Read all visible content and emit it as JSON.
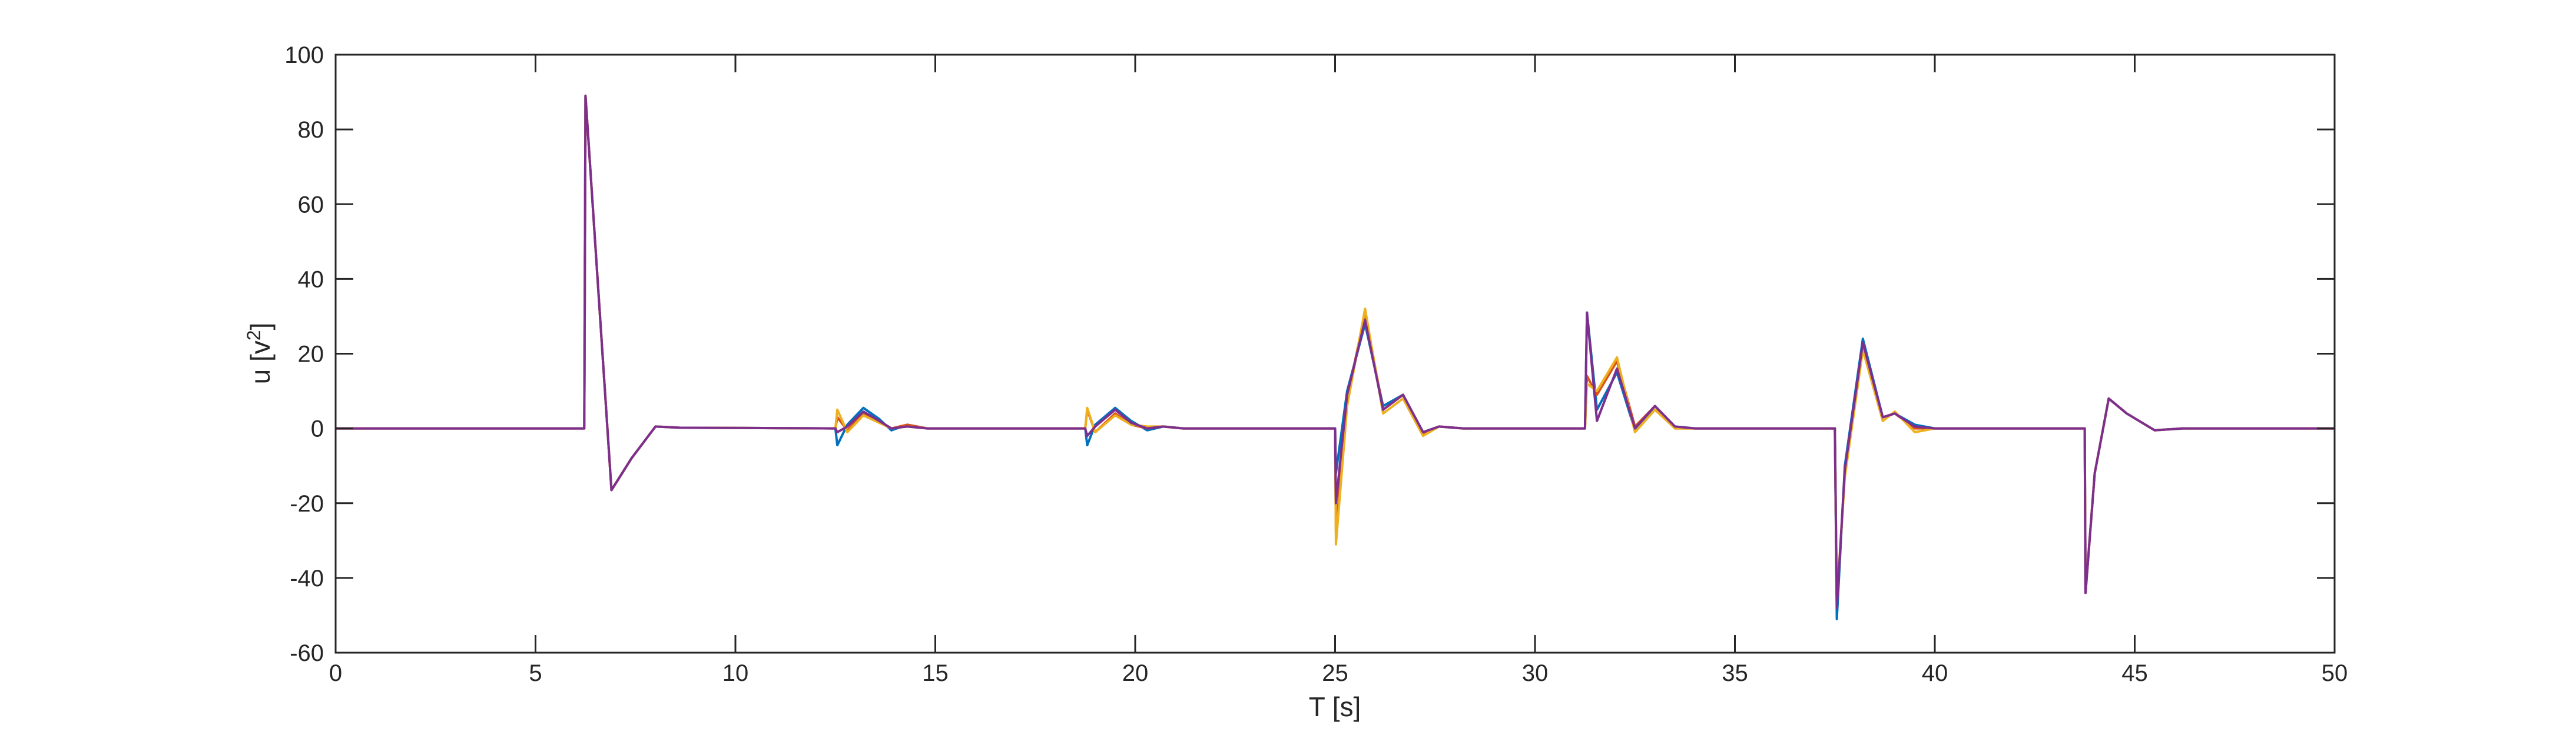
{
  "chart_data": {
    "type": "line",
    "title": "",
    "xlabel": "T [s]",
    "ylabel_base": "u [v",
    "ylabel_sup": "2",
    "ylabel_end": "]",
    "xlim": [
      0,
      50
    ],
    "ylim": [
      -60,
      100
    ],
    "x_ticks": [
      0,
      5,
      10,
      15,
      20,
      25,
      30,
      35,
      40,
      45,
      50
    ],
    "y_ticks": [
      -60,
      -40,
      -20,
      0,
      20,
      40,
      60,
      80,
      100
    ],
    "grid": false,
    "legend": "none",
    "series": [
      {
        "color": "#0072BD",
        "points": [
          [
            0,
            0
          ],
          [
            6.22,
            0
          ],
          [
            6.25,
            89
          ],
          [
            6.9,
            -16.5
          ],
          [
            7.4,
            -8
          ],
          [
            8.0,
            0.5
          ],
          [
            8.6,
            0.2
          ],
          [
            12.5,
            0
          ],
          [
            12.55,
            -4.5
          ],
          [
            12.8,
            1
          ],
          [
            13.2,
            5.5
          ],
          [
            13.6,
            2.5
          ],
          [
            13.9,
            -0.5
          ],
          [
            14.3,
            1
          ],
          [
            14.8,
            0
          ],
          [
            18.75,
            0
          ],
          [
            18.8,
            -4.5
          ],
          [
            19.0,
            1
          ],
          [
            19.5,
            5.5
          ],
          [
            19.9,
            2
          ],
          [
            20.3,
            -0.5
          ],
          [
            20.7,
            0.5
          ],
          [
            21.2,
            0
          ],
          [
            25.0,
            0
          ],
          [
            25.02,
            -12
          ],
          [
            25.3,
            10
          ],
          [
            25.75,
            28
          ],
          [
            26.2,
            6
          ],
          [
            26.7,
            9
          ],
          [
            27.2,
            -1
          ],
          [
            27.6,
            0.5
          ],
          [
            28.2,
            0
          ],
          [
            31.25,
            0
          ],
          [
            31.3,
            31
          ],
          [
            31.55,
            5
          ],
          [
            32.05,
            15
          ],
          [
            32.5,
            -0.5
          ],
          [
            33.0,
            6
          ],
          [
            33.5,
            0.5
          ],
          [
            34.0,
            0
          ],
          [
            37.5,
            0
          ],
          [
            37.55,
            -51
          ],
          [
            37.75,
            -10
          ],
          [
            38.2,
            24
          ],
          [
            38.7,
            3
          ],
          [
            39.0,
            4
          ],
          [
            39.5,
            1
          ],
          [
            40.0,
            0
          ],
          [
            43.75,
            0
          ],
          [
            43.77,
            -44
          ],
          [
            44.0,
            -12
          ],
          [
            44.35,
            8
          ],
          [
            44.8,
            4
          ],
          [
            45.5,
            -0.5
          ],
          [
            46.2,
            0
          ],
          [
            50,
            0
          ]
        ]
      },
      {
        "color": "#D95319",
        "points": [
          [
            0,
            0
          ],
          [
            6.22,
            0
          ],
          [
            6.25,
            89
          ],
          [
            6.9,
            -16.5
          ],
          [
            7.4,
            -8
          ],
          [
            8.0,
            0.5
          ],
          [
            8.6,
            0.2
          ],
          [
            12.5,
            0
          ],
          [
            12.55,
            3
          ],
          [
            12.8,
            -0.5
          ],
          [
            13.2,
            4
          ],
          [
            13.6,
            2
          ],
          [
            13.9,
            0
          ],
          [
            14.3,
            1
          ],
          [
            14.8,
            0
          ],
          [
            18.75,
            0
          ],
          [
            18.8,
            5
          ],
          [
            19.0,
            -1
          ],
          [
            19.5,
            4
          ],
          [
            19.9,
            1
          ],
          [
            20.3,
            0
          ],
          [
            20.7,
            0.5
          ],
          [
            21.2,
            0
          ],
          [
            25.0,
            0
          ],
          [
            25.02,
            -28
          ],
          [
            25.3,
            8
          ],
          [
            25.75,
            31
          ],
          [
            26.2,
            5
          ],
          [
            26.7,
            9
          ],
          [
            27.2,
            -1.5
          ],
          [
            27.6,
            0.5
          ],
          [
            28.2,
            0
          ],
          [
            31.25,
            0
          ],
          [
            31.3,
            14
          ],
          [
            31.55,
            9
          ],
          [
            32.05,
            18
          ],
          [
            32.5,
            0.5
          ],
          [
            33.0,
            6
          ],
          [
            33.5,
            0
          ],
          [
            34.0,
            0
          ],
          [
            37.5,
            0
          ],
          [
            37.55,
            -47
          ],
          [
            37.75,
            -12
          ],
          [
            38.2,
            22
          ],
          [
            38.7,
            3
          ],
          [
            39.0,
            4
          ],
          [
            39.5,
            0
          ],
          [
            40.0,
            0
          ],
          [
            43.75,
            0
          ],
          [
            43.77,
            -44
          ],
          [
            44.0,
            -12
          ],
          [
            44.35,
            8
          ],
          [
            44.8,
            4
          ],
          [
            45.5,
            -0.5
          ],
          [
            46.2,
            0
          ],
          [
            50,
            0
          ]
        ]
      },
      {
        "color": "#EDB120",
        "points": [
          [
            0,
            0
          ],
          [
            6.22,
            0
          ],
          [
            6.25,
            89
          ],
          [
            6.9,
            -16.5
          ],
          [
            7.4,
            -8
          ],
          [
            8.0,
            0.5
          ],
          [
            8.6,
            0.2
          ],
          [
            12.5,
            0
          ],
          [
            12.55,
            5
          ],
          [
            12.8,
            -1
          ],
          [
            13.2,
            3.5
          ],
          [
            13.6,
            1.5
          ],
          [
            13.9,
            0
          ],
          [
            14.3,
            0.5
          ],
          [
            14.8,
            0
          ],
          [
            18.75,
            0
          ],
          [
            18.8,
            5.5
          ],
          [
            19.0,
            -1
          ],
          [
            19.5,
            3.5
          ],
          [
            19.9,
            1
          ],
          [
            20.3,
            0.5
          ],
          [
            20.7,
            0.5
          ],
          [
            21.2,
            0
          ],
          [
            25.0,
            0
          ],
          [
            25.02,
            -31
          ],
          [
            25.3,
            6
          ],
          [
            25.75,
            32
          ],
          [
            26.2,
            4
          ],
          [
            26.7,
            8
          ],
          [
            27.2,
            -2
          ],
          [
            27.6,
            0.5
          ],
          [
            28.2,
            0
          ],
          [
            31.25,
            0
          ],
          [
            31.3,
            12
          ],
          [
            31.55,
            10
          ],
          [
            32.05,
            19
          ],
          [
            32.5,
            -1
          ],
          [
            33.0,
            5
          ],
          [
            33.5,
            0
          ],
          [
            34.0,
            0
          ],
          [
            37.5,
            0
          ],
          [
            37.55,
            -46
          ],
          [
            37.75,
            -13
          ],
          [
            38.2,
            21
          ],
          [
            38.7,
            2
          ],
          [
            39.0,
            4.5
          ],
          [
            39.5,
            -1
          ],
          [
            40.0,
            0
          ],
          [
            43.75,
            0
          ],
          [
            43.77,
            -44
          ],
          [
            44.0,
            -12
          ],
          [
            44.35,
            8
          ],
          [
            44.8,
            4
          ],
          [
            45.5,
            -0.5
          ],
          [
            46.2,
            0
          ],
          [
            50,
            0
          ]
        ]
      },
      {
        "color": "#7E2F8E",
        "points": [
          [
            0,
            0
          ],
          [
            6.22,
            0
          ],
          [
            6.25,
            89
          ],
          [
            6.9,
            -16.5
          ],
          [
            7.4,
            -8
          ],
          [
            8.0,
            0.5
          ],
          [
            8.6,
            0.2
          ],
          [
            12.5,
            0
          ],
          [
            12.55,
            -1
          ],
          [
            12.8,
            0.5
          ],
          [
            13.2,
            4.5
          ],
          [
            13.6,
            2
          ],
          [
            13.9,
            0
          ],
          [
            14.3,
            0.5
          ],
          [
            14.8,
            0
          ],
          [
            18.75,
            0
          ],
          [
            18.8,
            -2
          ],
          [
            19.0,
            0.5
          ],
          [
            19.5,
            5
          ],
          [
            19.9,
            1.5
          ],
          [
            20.3,
            0
          ],
          [
            20.7,
            0.5
          ],
          [
            21.2,
            0
          ],
          [
            25.0,
            0
          ],
          [
            25.02,
            -20
          ],
          [
            25.3,
            9
          ],
          [
            25.75,
            29
          ],
          [
            26.2,
            5
          ],
          [
            26.7,
            9
          ],
          [
            27.2,
            -1
          ],
          [
            27.6,
            0.5
          ],
          [
            28.2,
            0
          ],
          [
            31.25,
            0
          ],
          [
            31.3,
            31
          ],
          [
            31.55,
            2
          ],
          [
            32.05,
            16
          ],
          [
            32.5,
            0
          ],
          [
            33.0,
            6
          ],
          [
            33.5,
            0.5
          ],
          [
            34.0,
            0
          ],
          [
            37.5,
            0
          ],
          [
            37.55,
            -48
          ],
          [
            37.75,
            -11
          ],
          [
            38.2,
            23
          ],
          [
            38.7,
            3
          ],
          [
            39.0,
            4
          ],
          [
            39.5,
            0.5
          ],
          [
            40.0,
            0
          ],
          [
            43.75,
            0
          ],
          [
            43.77,
            -44
          ],
          [
            44.0,
            -12
          ],
          [
            44.35,
            8
          ],
          [
            44.8,
            4
          ],
          [
            45.5,
            -0.5
          ],
          [
            46.2,
            0
          ],
          [
            50,
            0
          ]
        ]
      }
    ]
  }
}
